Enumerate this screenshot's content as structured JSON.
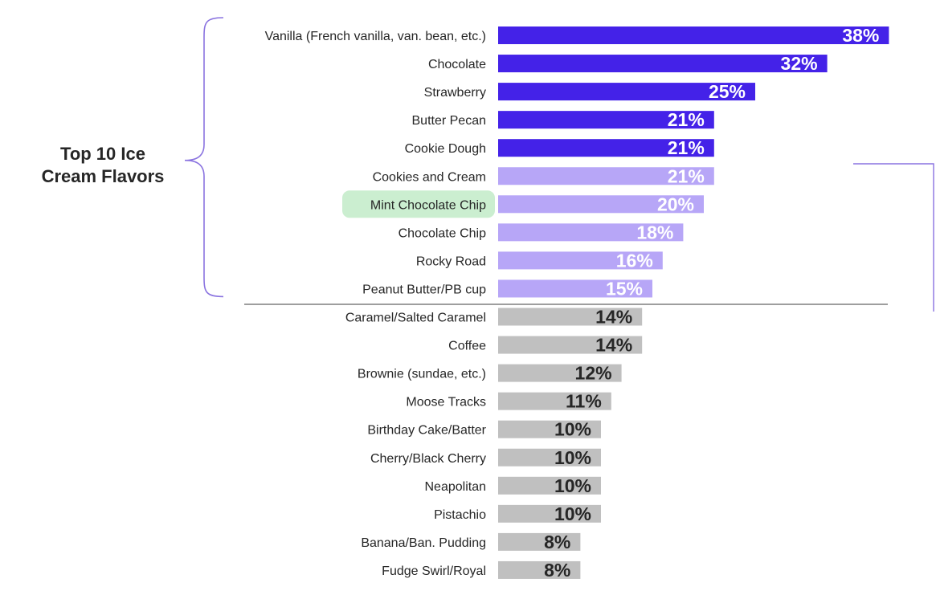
{
  "chart_data": {
    "type": "bar",
    "orientation": "horizontal",
    "title": "",
    "xlabel": "",
    "ylabel": "",
    "xlim": [
      0,
      40
    ],
    "unit": "%",
    "group_label_line1": "Top 10 Ice",
    "group_label_line2": "Cream Flavors",
    "top_group_size": 10,
    "highlighted_category": "Mint Chocolate Chip",
    "colors": {
      "top5": "#4422e8",
      "top10": "#b7a6f7",
      "rest": "#c0c0c0",
      "highlight": "#cbeed0",
      "bracket": "#8a73e0",
      "divider": "#7f7f7f",
      "label_light": "#ffffff",
      "label_dark": "#262626"
    },
    "categories": [
      "Vanilla (French vanilla, van. bean, etc.)",
      "Chocolate",
      "Strawberry",
      "Butter Pecan",
      "Cookie Dough",
      "Cookies and Cream",
      "Mint Chocolate Chip",
      "Chocolate Chip",
      "Rocky Road",
      "Peanut Butter/PB cup",
      "Caramel/Salted Caramel",
      "Coffee",
      "Brownie (sundae, etc.)",
      "Moose Tracks",
      "Birthday Cake/Batter",
      "Cherry/Black Cherry",
      "Neapolitan",
      "Pistachio",
      "Banana/Ban. Pudding",
      "Fudge Swirl/Royal"
    ],
    "values": [
      38,
      32,
      25,
      21,
      21,
      21,
      20,
      18,
      16,
      15,
      14,
      14,
      12,
      11,
      10,
      10,
      10,
      10,
      8,
      8
    ],
    "tiers": [
      "top5",
      "top5",
      "top5",
      "top5",
      "top5",
      "top10",
      "top10",
      "top10",
      "top10",
      "top10",
      "rest",
      "rest",
      "rest",
      "rest",
      "rest",
      "rest",
      "rest",
      "rest",
      "rest",
      "rest"
    ],
    "value_labels": [
      "38%",
      "32%",
      "25%",
      "21%",
      "21%",
      "21%",
      "20%",
      "18%",
      "16%",
      "15%",
      "14%",
      "14%",
      "12%",
      "11%",
      "10%",
      "10%",
      "10%",
      "10%",
      "8%",
      "8%"
    ]
  }
}
